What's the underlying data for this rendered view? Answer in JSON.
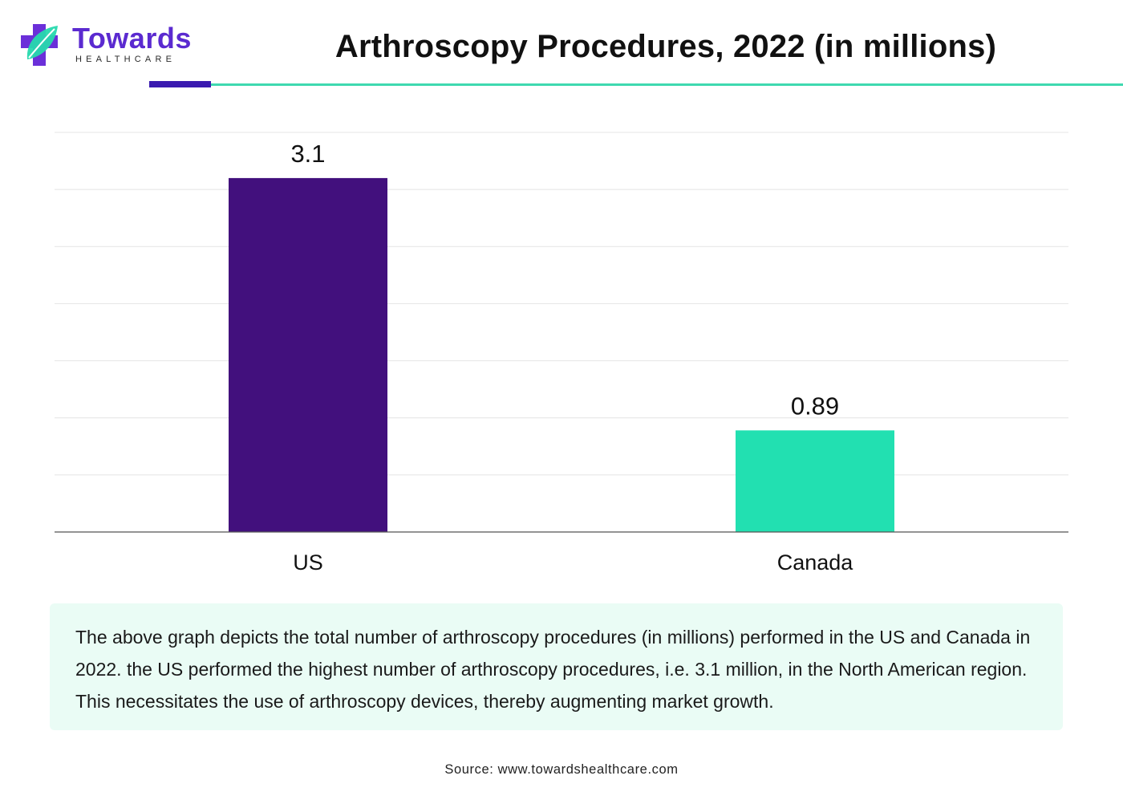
{
  "brand": {
    "name": "Towards",
    "tagline": "HEALTHCARE",
    "colors": {
      "purple": "#6b2fd9",
      "teal": "#27d9ae",
      "wordmark": "#5b2ad0"
    }
  },
  "header": {
    "title": "Arthroscopy Procedures, 2022 (in millions)",
    "rule_accent_color": "#3a1ab0",
    "rule_line_color": "#3fd9b0"
  },
  "chart_data": {
    "type": "bar",
    "title": "Arthroscopy Procedures, 2022 (in millions)",
    "categories": [
      "US",
      "Canada"
    ],
    "values": [
      3.1,
      0.89
    ],
    "data_labels": [
      "3.1",
      "0.89"
    ],
    "bar_colors": [
      "#42107d",
      "#22e0b1"
    ],
    "ylim": [
      0,
      3.5
    ],
    "gridlines": [
      0.5,
      1.0,
      1.5,
      2.0,
      2.5,
      3.0,
      3.5
    ],
    "grid": true,
    "legend": "none",
    "xlabel": "",
    "ylabel": ""
  },
  "summary": {
    "text": "The above graph depicts the total number of arthroscopy procedures (in millions) performed in the US and Canada in 2022. the US performed the highest number of arthroscopy procedures, i.e. 3.1 million, in the North American region. This necessitates the use of arthroscopy devices, thereby augmenting market growth.",
    "background": "#eafcf5"
  },
  "source": "Source: www.towardshealthcare.com"
}
